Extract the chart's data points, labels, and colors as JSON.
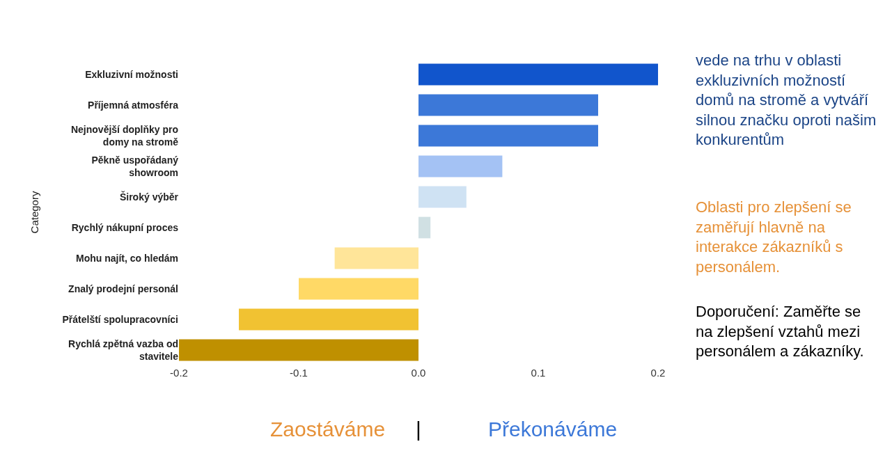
{
  "chart_data": {
    "type": "bar",
    "orientation": "horizontal",
    "ylabel": "Category",
    "categories": [
      "Exkluzivní možnosti",
      "Příjemná atmosféra",
      "Nejnovější doplňky pro domy na stromě",
      "Pěkně uspořádaný showroom",
      "Široký výběr",
      "Rychlý nákupní proces",
      "Mohu najít, co hledám",
      "Znalý prodejní personál",
      "Přátelští spolupracovníci",
      "Rychlá zpětná vazba od stavitele"
    ],
    "values": [
      0.2,
      0.15,
      0.15,
      0.07,
      0.04,
      0.01,
      -0.07,
      -0.1,
      -0.15,
      -0.2
    ],
    "colors": [
      "#1155cc",
      "#3c78d8",
      "#3c78d8",
      "#a4c2f4",
      "#cfe2f3",
      "#d0e0e3",
      "#ffe599",
      "#ffd966",
      "#f1c232",
      "#bf9000"
    ],
    "xlim": [
      -0.2,
      0.2
    ],
    "xticks": [
      -0.2,
      -0.1,
      {
        "value": 0,
        "label": "0.0"
      },
      0.1,
      0.2
    ],
    "grid": false,
    "annotations": [
      "vede na trhu v oblasti exkluzivních možností domů na stromě a vytváří silnou značku oproti našim konkurentům",
      "Oblasti pro zlepšení se zaměřují hlavně na interakce zákazníků s personálem.",
      "Doporučení: Zaměřte se na zlepšení vztahů mezi personálem a zákazníky.",
      "Zaostáváme",
      "|",
      "Překonáváme"
    ]
  }
}
